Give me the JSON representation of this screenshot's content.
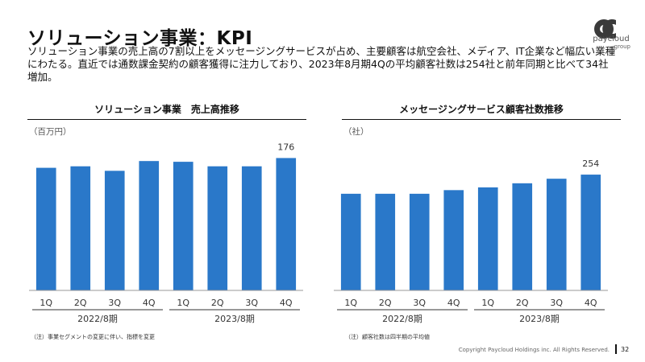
{
  "page": {
    "title": "ソリューション事業：KPI",
    "lead": "ソリューション事業の売上高の7割以上をメッセージングサービスが占め、主要顧客は航空会社、メディア、IT企業など幅広い業種にわたる。直近では通数課金契約の顧客獲得に注力しており、2023年8月期4Qの平均顧客社数は254社と前年同期と比べて34社増加。",
    "logo_text": "paycloud",
    "logo_sub": "group",
    "copyright": "Copyright Paycloud Holdings inc. All Rights Reserved.",
    "page_number": "32"
  },
  "colors": {
    "bar": "#2a78c9",
    "axis": "#999999",
    "group_line": "#333333"
  },
  "left": {
    "title": "ソリューション事業　売上高推移",
    "unit": "（百万円）",
    "note": "（注）事業セグメントの変更に伴い、指標を変更"
  },
  "right": {
    "title": "メッセージングサービス顧客社数推移",
    "unit": "（社）",
    "note": "（注）顧客社数は四半期の平均値"
  },
  "chart_data": [
    {
      "type": "bar",
      "title": "ソリューション事業　売上高推移",
      "ylabel": "（百万円）",
      "categories": [
        "1Q",
        "2Q",
        "3Q",
        "4Q",
        "1Q",
        "2Q",
        "3Q",
        "4Q"
      ],
      "groups": [
        {
          "label": "2022/8期",
          "count": 4
        },
        {
          "label": "2023/8期",
          "count": 4
        }
      ],
      "values": [
        163,
        165,
        159,
        172,
        171,
        165,
        165,
        176
      ],
      "labels": [
        "",
        "",
        "",
        "",
        "",
        "",
        "",
        "176"
      ],
      "ylim": [
        0,
        200
      ],
      "grid": false
    },
    {
      "type": "bar",
      "title": "メッセージングサービス顧客社数推移",
      "ylabel": "（社）",
      "categories": [
        "1Q",
        "2Q",
        "3Q",
        "4Q",
        "1Q",
        "2Q",
        "3Q",
        "4Q"
      ],
      "groups": [
        {
          "label": "2022/8期",
          "count": 4
        },
        {
          "label": "2023/8期",
          "count": 4
        }
      ],
      "values": [
        212,
        212,
        212,
        220,
        226,
        235,
        245,
        254
      ],
      "labels": [
        "",
        "",
        "",
        "",
        "",
        "",
        "",
        "254"
      ],
      "ylim": [
        0,
        330
      ],
      "grid": false
    }
  ]
}
